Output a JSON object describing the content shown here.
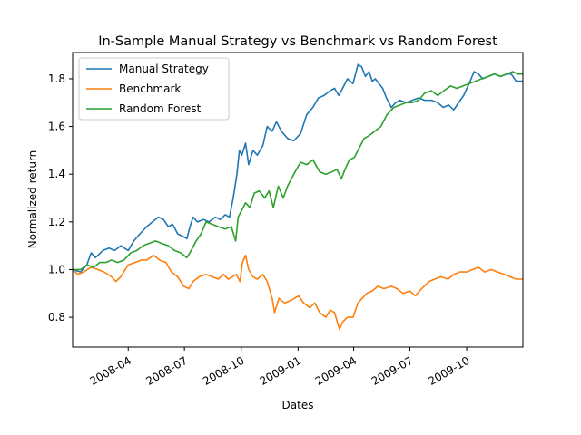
{
  "chart_data": {
    "type": "line",
    "title": "In-Sample Manual Strategy vs Benchmark vs Random Forest",
    "xlabel": "Dates",
    "ylabel": "Normalized return",
    "x_axis_type": "date",
    "xlim": [
      "2008-01-02",
      "2009-12-31"
    ],
    "ylim": [
      0.675,
      1.91
    ],
    "x_ticks": [
      {
        "date": "2008-04-01",
        "label": "2008-04"
      },
      {
        "date": "2008-07-01",
        "label": "2008-07"
      },
      {
        "date": "2008-10-01",
        "label": "2008-10"
      },
      {
        "date": "2009-01-01",
        "label": "2009-01"
      },
      {
        "date": "2009-04-01",
        "label": "2009-04"
      },
      {
        "date": "2009-07-01",
        "label": "2009-07"
      },
      {
        "date": "2009-10-01",
        "label": "2009-10"
      }
    ],
    "y_ticks": [
      0.8,
      1.0,
      1.2,
      1.4,
      1.6,
      1.8
    ],
    "grid": false,
    "legend_position": "top-left",
    "series": [
      {
        "name": "Manual Strategy",
        "color": "#1f77b4",
        "points": [
          [
            "2008-01-02",
            1.0
          ],
          [
            "2008-01-15",
            0.99
          ],
          [
            "2008-01-25",
            1.02
          ],
          [
            "2008-02-01",
            1.07
          ],
          [
            "2008-02-08",
            1.05
          ],
          [
            "2008-02-20",
            1.08
          ],
          [
            "2008-03-01",
            1.09
          ],
          [
            "2008-03-10",
            1.08
          ],
          [
            "2008-03-20",
            1.1
          ],
          [
            "2008-04-01",
            1.08
          ],
          [
            "2008-04-10",
            1.12
          ],
          [
            "2008-04-20",
            1.15
          ],
          [
            "2008-05-01",
            1.18
          ],
          [
            "2008-05-10",
            1.2
          ],
          [
            "2008-05-20",
            1.22
          ],
          [
            "2008-05-28",
            1.21
          ],
          [
            "2008-06-05",
            1.18
          ],
          [
            "2008-06-12",
            1.19
          ],
          [
            "2008-06-20",
            1.15
          ],
          [
            "2008-06-28",
            1.14
          ],
          [
            "2008-07-05",
            1.13
          ],
          [
            "2008-07-10",
            1.18
          ],
          [
            "2008-07-15",
            1.22
          ],
          [
            "2008-07-22",
            1.2
          ],
          [
            "2008-08-01",
            1.21
          ],
          [
            "2008-08-10",
            1.2
          ],
          [
            "2008-08-20",
            1.22
          ],
          [
            "2008-08-28",
            1.21
          ],
          [
            "2008-09-05",
            1.23
          ],
          [
            "2008-09-12",
            1.22
          ],
          [
            "2008-09-18",
            1.3
          ],
          [
            "2008-09-24",
            1.4
          ],
          [
            "2008-09-28",
            1.5
          ],
          [
            "2008-10-02",
            1.48
          ],
          [
            "2008-10-08",
            1.53
          ],
          [
            "2008-10-13",
            1.44
          ],
          [
            "2008-10-20",
            1.5
          ],
          [
            "2008-10-27",
            1.48
          ],
          [
            "2008-11-05",
            1.52
          ],
          [
            "2008-11-12",
            1.6
          ],
          [
            "2008-11-20",
            1.58
          ],
          [
            "2008-11-27",
            1.62
          ],
          [
            "2008-12-05",
            1.58
          ],
          [
            "2008-12-15",
            1.55
          ],
          [
            "2008-12-25",
            1.54
          ],
          [
            "2009-01-05",
            1.57
          ],
          [
            "2009-01-15",
            1.65
          ],
          [
            "2009-01-25",
            1.68
          ],
          [
            "2009-02-03",
            1.72
          ],
          [
            "2009-02-12",
            1.73
          ],
          [
            "2009-02-22",
            1.75
          ],
          [
            "2009-03-01",
            1.76
          ],
          [
            "2009-03-08",
            1.73
          ],
          [
            "2009-03-14",
            1.76
          ],
          [
            "2009-03-22",
            1.8
          ],
          [
            "2009-03-31",
            1.78
          ],
          [
            "2009-04-08",
            1.86
          ],
          [
            "2009-04-14",
            1.85
          ],
          [
            "2009-04-20",
            1.81
          ],
          [
            "2009-04-26",
            1.83
          ],
          [
            "2009-05-01",
            1.79
          ],
          [
            "2009-05-06",
            1.8
          ],
          [
            "2009-05-12",
            1.78
          ],
          [
            "2009-05-18",
            1.76
          ],
          [
            "2009-05-24",
            1.72
          ],
          [
            "2009-06-01",
            1.68
          ],
          [
            "2009-06-08",
            1.7
          ],
          [
            "2009-06-15",
            1.71
          ],
          [
            "2009-06-25",
            1.7
          ],
          [
            "2009-07-05",
            1.71
          ],
          [
            "2009-07-15",
            1.72
          ],
          [
            "2009-07-25",
            1.71
          ],
          [
            "2009-08-05",
            1.71
          ],
          [
            "2009-08-15",
            1.7
          ],
          [
            "2009-08-24",
            1.68
          ],
          [
            "2009-09-02",
            1.69
          ],
          [
            "2009-09-10",
            1.67
          ],
          [
            "2009-09-18",
            1.7
          ],
          [
            "2009-09-26",
            1.73
          ],
          [
            "2009-10-05",
            1.78
          ],
          [
            "2009-10-13",
            1.83
          ],
          [
            "2009-10-20",
            1.82
          ],
          [
            "2009-10-27",
            1.8
          ],
          [
            "2009-11-05",
            1.81
          ],
          [
            "2009-11-15",
            1.82
          ],
          [
            "2009-11-25",
            1.81
          ],
          [
            "2009-12-05",
            1.82
          ],
          [
            "2009-12-12",
            1.82
          ],
          [
            "2009-12-20",
            1.79
          ],
          [
            "2009-12-31",
            1.79
          ]
        ]
      },
      {
        "name": "Benchmark",
        "color": "#ff7f0e",
        "points": [
          [
            "2008-01-02",
            1.0
          ],
          [
            "2008-01-10",
            0.98
          ],
          [
            "2008-01-20",
            0.99
          ],
          [
            "2008-02-01",
            1.01
          ],
          [
            "2008-02-12",
            1.0
          ],
          [
            "2008-02-22",
            0.99
          ],
          [
            "2008-03-05",
            0.97
          ],
          [
            "2008-03-12",
            0.95
          ],
          [
            "2008-03-20",
            0.97
          ],
          [
            "2008-04-01",
            1.02
          ],
          [
            "2008-04-12",
            1.03
          ],
          [
            "2008-04-22",
            1.04
          ],
          [
            "2008-05-01",
            1.04
          ],
          [
            "2008-05-12",
            1.06
          ],
          [
            "2008-05-22",
            1.04
          ],
          [
            "2008-06-01",
            1.03
          ],
          [
            "2008-06-10",
            0.99
          ],
          [
            "2008-06-20",
            0.97
          ],
          [
            "2008-06-30",
            0.93
          ],
          [
            "2008-07-08",
            0.92
          ],
          [
            "2008-07-15",
            0.95
          ],
          [
            "2008-07-25",
            0.97
          ],
          [
            "2008-08-05",
            0.98
          ],
          [
            "2008-08-15",
            0.97
          ],
          [
            "2008-08-25",
            0.96
          ],
          [
            "2008-09-02",
            0.98
          ],
          [
            "2008-09-10",
            0.96
          ],
          [
            "2008-09-17",
            0.97
          ],
          [
            "2008-09-23",
            0.98
          ],
          [
            "2008-09-29",
            0.95
          ],
          [
            "2008-10-03",
            1.03
          ],
          [
            "2008-10-08",
            1.06
          ],
          [
            "2008-10-13",
            1.0
          ],
          [
            "2008-10-20",
            0.97
          ],
          [
            "2008-10-27",
            0.96
          ],
          [
            "2008-11-05",
            0.98
          ],
          [
            "2008-11-12",
            0.95
          ],
          [
            "2008-11-20",
            0.88
          ],
          [
            "2008-11-24",
            0.82
          ],
          [
            "2008-12-01",
            0.88
          ],
          [
            "2008-12-10",
            0.86
          ],
          [
            "2008-12-20",
            0.87
          ],
          [
            "2009-01-02",
            0.89
          ],
          [
            "2009-01-10",
            0.86
          ],
          [
            "2009-01-20",
            0.84
          ],
          [
            "2009-01-28",
            0.86
          ],
          [
            "2009-02-05",
            0.82
          ],
          [
            "2009-02-15",
            0.8
          ],
          [
            "2009-02-22",
            0.83
          ],
          [
            "2009-03-01",
            0.82
          ],
          [
            "2009-03-09",
            0.75
          ],
          [
            "2009-03-14",
            0.78
          ],
          [
            "2009-03-22",
            0.8
          ],
          [
            "2009-03-31",
            0.8
          ],
          [
            "2009-04-08",
            0.86
          ],
          [
            "2009-04-15",
            0.88
          ],
          [
            "2009-04-22",
            0.9
          ],
          [
            "2009-05-01",
            0.91
          ],
          [
            "2009-05-10",
            0.93
          ],
          [
            "2009-05-20",
            0.92
          ],
          [
            "2009-06-01",
            0.93
          ],
          [
            "2009-06-10",
            0.92
          ],
          [
            "2009-06-20",
            0.9
          ],
          [
            "2009-07-01",
            0.91
          ],
          [
            "2009-07-10",
            0.89
          ],
          [
            "2009-07-20",
            0.92
          ],
          [
            "2009-08-01",
            0.95
          ],
          [
            "2009-08-10",
            0.96
          ],
          [
            "2009-08-20",
            0.97
          ],
          [
            "2009-09-01",
            0.96
          ],
          [
            "2009-09-10",
            0.98
          ],
          [
            "2009-09-20",
            0.99
          ],
          [
            "2009-10-01",
            0.99
          ],
          [
            "2009-10-10",
            1.0
          ],
          [
            "2009-10-20",
            1.01
          ],
          [
            "2009-10-30",
            0.99
          ],
          [
            "2009-11-10",
            1.0
          ],
          [
            "2009-11-20",
            0.99
          ],
          [
            "2009-12-01",
            0.98
          ],
          [
            "2009-12-10",
            0.97
          ],
          [
            "2009-12-20",
            0.96
          ],
          [
            "2009-12-31",
            0.96
          ]
        ]
      },
      {
        "name": "Random Forest",
        "color": "#2ca02c",
        "points": [
          [
            "2008-01-02",
            1.0
          ],
          [
            "2008-01-15",
            1.0
          ],
          [
            "2008-01-25",
            1.02
          ],
          [
            "2008-02-05",
            1.01
          ],
          [
            "2008-02-15",
            1.03
          ],
          [
            "2008-02-25",
            1.03
          ],
          [
            "2008-03-05",
            1.04
          ],
          [
            "2008-03-15",
            1.03
          ],
          [
            "2008-03-25",
            1.04
          ],
          [
            "2008-04-05",
            1.07
          ],
          [
            "2008-04-15",
            1.08
          ],
          [
            "2008-04-25",
            1.1
          ],
          [
            "2008-05-05",
            1.11
          ],
          [
            "2008-05-15",
            1.12
          ],
          [
            "2008-05-25",
            1.11
          ],
          [
            "2008-06-05",
            1.1
          ],
          [
            "2008-06-15",
            1.08
          ],
          [
            "2008-06-25",
            1.07
          ],
          [
            "2008-07-05",
            1.05
          ],
          [
            "2008-07-12",
            1.08
          ],
          [
            "2008-07-20",
            1.12
          ],
          [
            "2008-07-28",
            1.15
          ],
          [
            "2008-08-05",
            1.2
          ],
          [
            "2008-08-15",
            1.19
          ],
          [
            "2008-08-25",
            1.18
          ],
          [
            "2008-09-05",
            1.17
          ],
          [
            "2008-09-15",
            1.18
          ],
          [
            "2008-09-22",
            1.12
          ],
          [
            "2008-09-26",
            1.22
          ],
          [
            "2008-10-02",
            1.25
          ],
          [
            "2008-10-08",
            1.28
          ],
          [
            "2008-10-15",
            1.26
          ],
          [
            "2008-10-22",
            1.32
          ],
          [
            "2008-10-30",
            1.33
          ],
          [
            "2008-11-08",
            1.3
          ],
          [
            "2008-11-15",
            1.33
          ],
          [
            "2008-11-22",
            1.26
          ],
          [
            "2008-11-30",
            1.35
          ],
          [
            "2008-12-08",
            1.3
          ],
          [
            "2008-12-15",
            1.35
          ],
          [
            "2008-12-25",
            1.4
          ],
          [
            "2009-01-05",
            1.45
          ],
          [
            "2009-01-15",
            1.44
          ],
          [
            "2009-01-25",
            1.46
          ],
          [
            "2009-02-05",
            1.41
          ],
          [
            "2009-02-15",
            1.4
          ],
          [
            "2009-02-25",
            1.41
          ],
          [
            "2009-03-05",
            1.42
          ],
          [
            "2009-03-12",
            1.38
          ],
          [
            "2009-03-18",
            1.42
          ],
          [
            "2009-03-25",
            1.46
          ],
          [
            "2009-04-02",
            1.47
          ],
          [
            "2009-04-10",
            1.51
          ],
          [
            "2009-04-18",
            1.55
          ],
          [
            "2009-04-25",
            1.56
          ],
          [
            "2009-05-05",
            1.58
          ],
          [
            "2009-05-15",
            1.6
          ],
          [
            "2009-05-25",
            1.65
          ],
          [
            "2009-06-05",
            1.68
          ],
          [
            "2009-06-15",
            1.69
          ],
          [
            "2009-06-25",
            1.7
          ],
          [
            "2009-07-05",
            1.7
          ],
          [
            "2009-07-15",
            1.71
          ],
          [
            "2009-07-25",
            1.74
          ],
          [
            "2009-08-05",
            1.75
          ],
          [
            "2009-08-15",
            1.73
          ],
          [
            "2009-08-25",
            1.75
          ],
          [
            "2009-09-05",
            1.77
          ],
          [
            "2009-09-15",
            1.76
          ],
          [
            "2009-09-25",
            1.77
          ],
          [
            "2009-10-05",
            1.78
          ],
          [
            "2009-10-15",
            1.79
          ],
          [
            "2009-10-25",
            1.8
          ],
          [
            "2009-11-05",
            1.81
          ],
          [
            "2009-11-15",
            1.82
          ],
          [
            "2009-11-25",
            1.81
          ],
          [
            "2009-12-05",
            1.82
          ],
          [
            "2009-12-15",
            1.83
          ],
          [
            "2009-12-22",
            1.82
          ],
          [
            "2009-12-31",
            1.82
          ]
        ]
      }
    ]
  }
}
